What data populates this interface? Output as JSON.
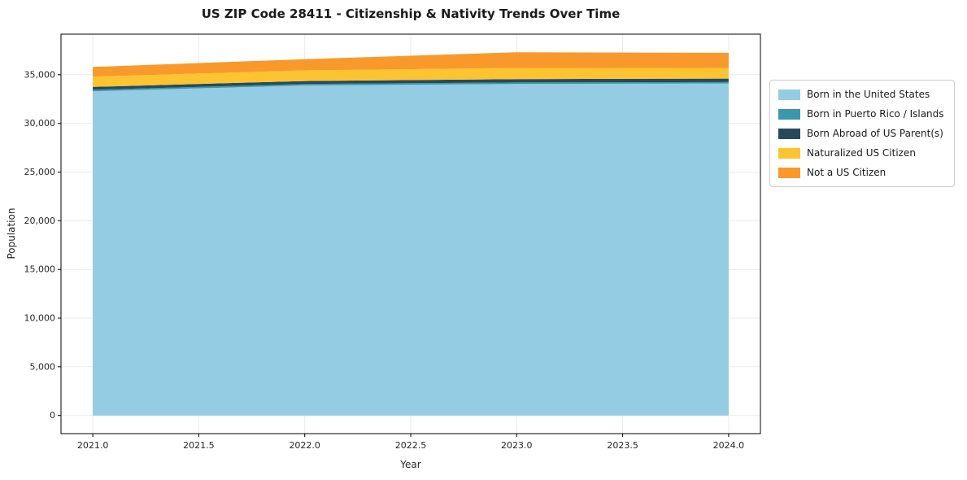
{
  "title": "US ZIP Code 28411 - Citizenship & Nativity Trends Over Time",
  "chart_data": {
    "type": "area",
    "stacked": true,
    "title": "US ZIP Code 28411 - Citizenship & Nativity Trends Over Time",
    "xlabel": "Year",
    "ylabel": "Population",
    "x": [
      2021,
      2022,
      2023,
      2024
    ],
    "series": [
      {
        "name": "Born in the United States",
        "color": "#94cce4",
        "values": [
          33300,
          33900,
          34050,
          34100
        ]
      },
      {
        "name": "Born in Puerto Rico / Islands",
        "color": "#3b97ac",
        "values": [
          150,
          150,
          150,
          150
        ]
      },
      {
        "name": "Born Abroad of US Parent(s)",
        "color": "#28495c",
        "values": [
          300,
          300,
          350,
          350
        ]
      },
      {
        "name": "Naturalized US Citizen",
        "color": "#fdc431",
        "values": [
          1050,
          1100,
          1150,
          1100
        ]
      },
      {
        "name": "Not a US Citizen",
        "color": "#f9992c",
        "values": [
          1000,
          1150,
          1600,
          1550
        ]
      }
    ],
    "totals": [
      35800,
      36600,
      37300,
      37250
    ],
    "xlim": [
      2020.85,
      2024.15
    ],
    "ylim": [
      -1865,
      39165
    ],
    "xticks": [
      2021.0,
      2021.5,
      2022.0,
      2022.5,
      2023.0,
      2023.5,
      2024.0
    ],
    "yticks": [
      0,
      5000,
      10000,
      15000,
      20000,
      25000,
      30000,
      35000
    ],
    "grid": true,
    "legend_position": "right"
  }
}
